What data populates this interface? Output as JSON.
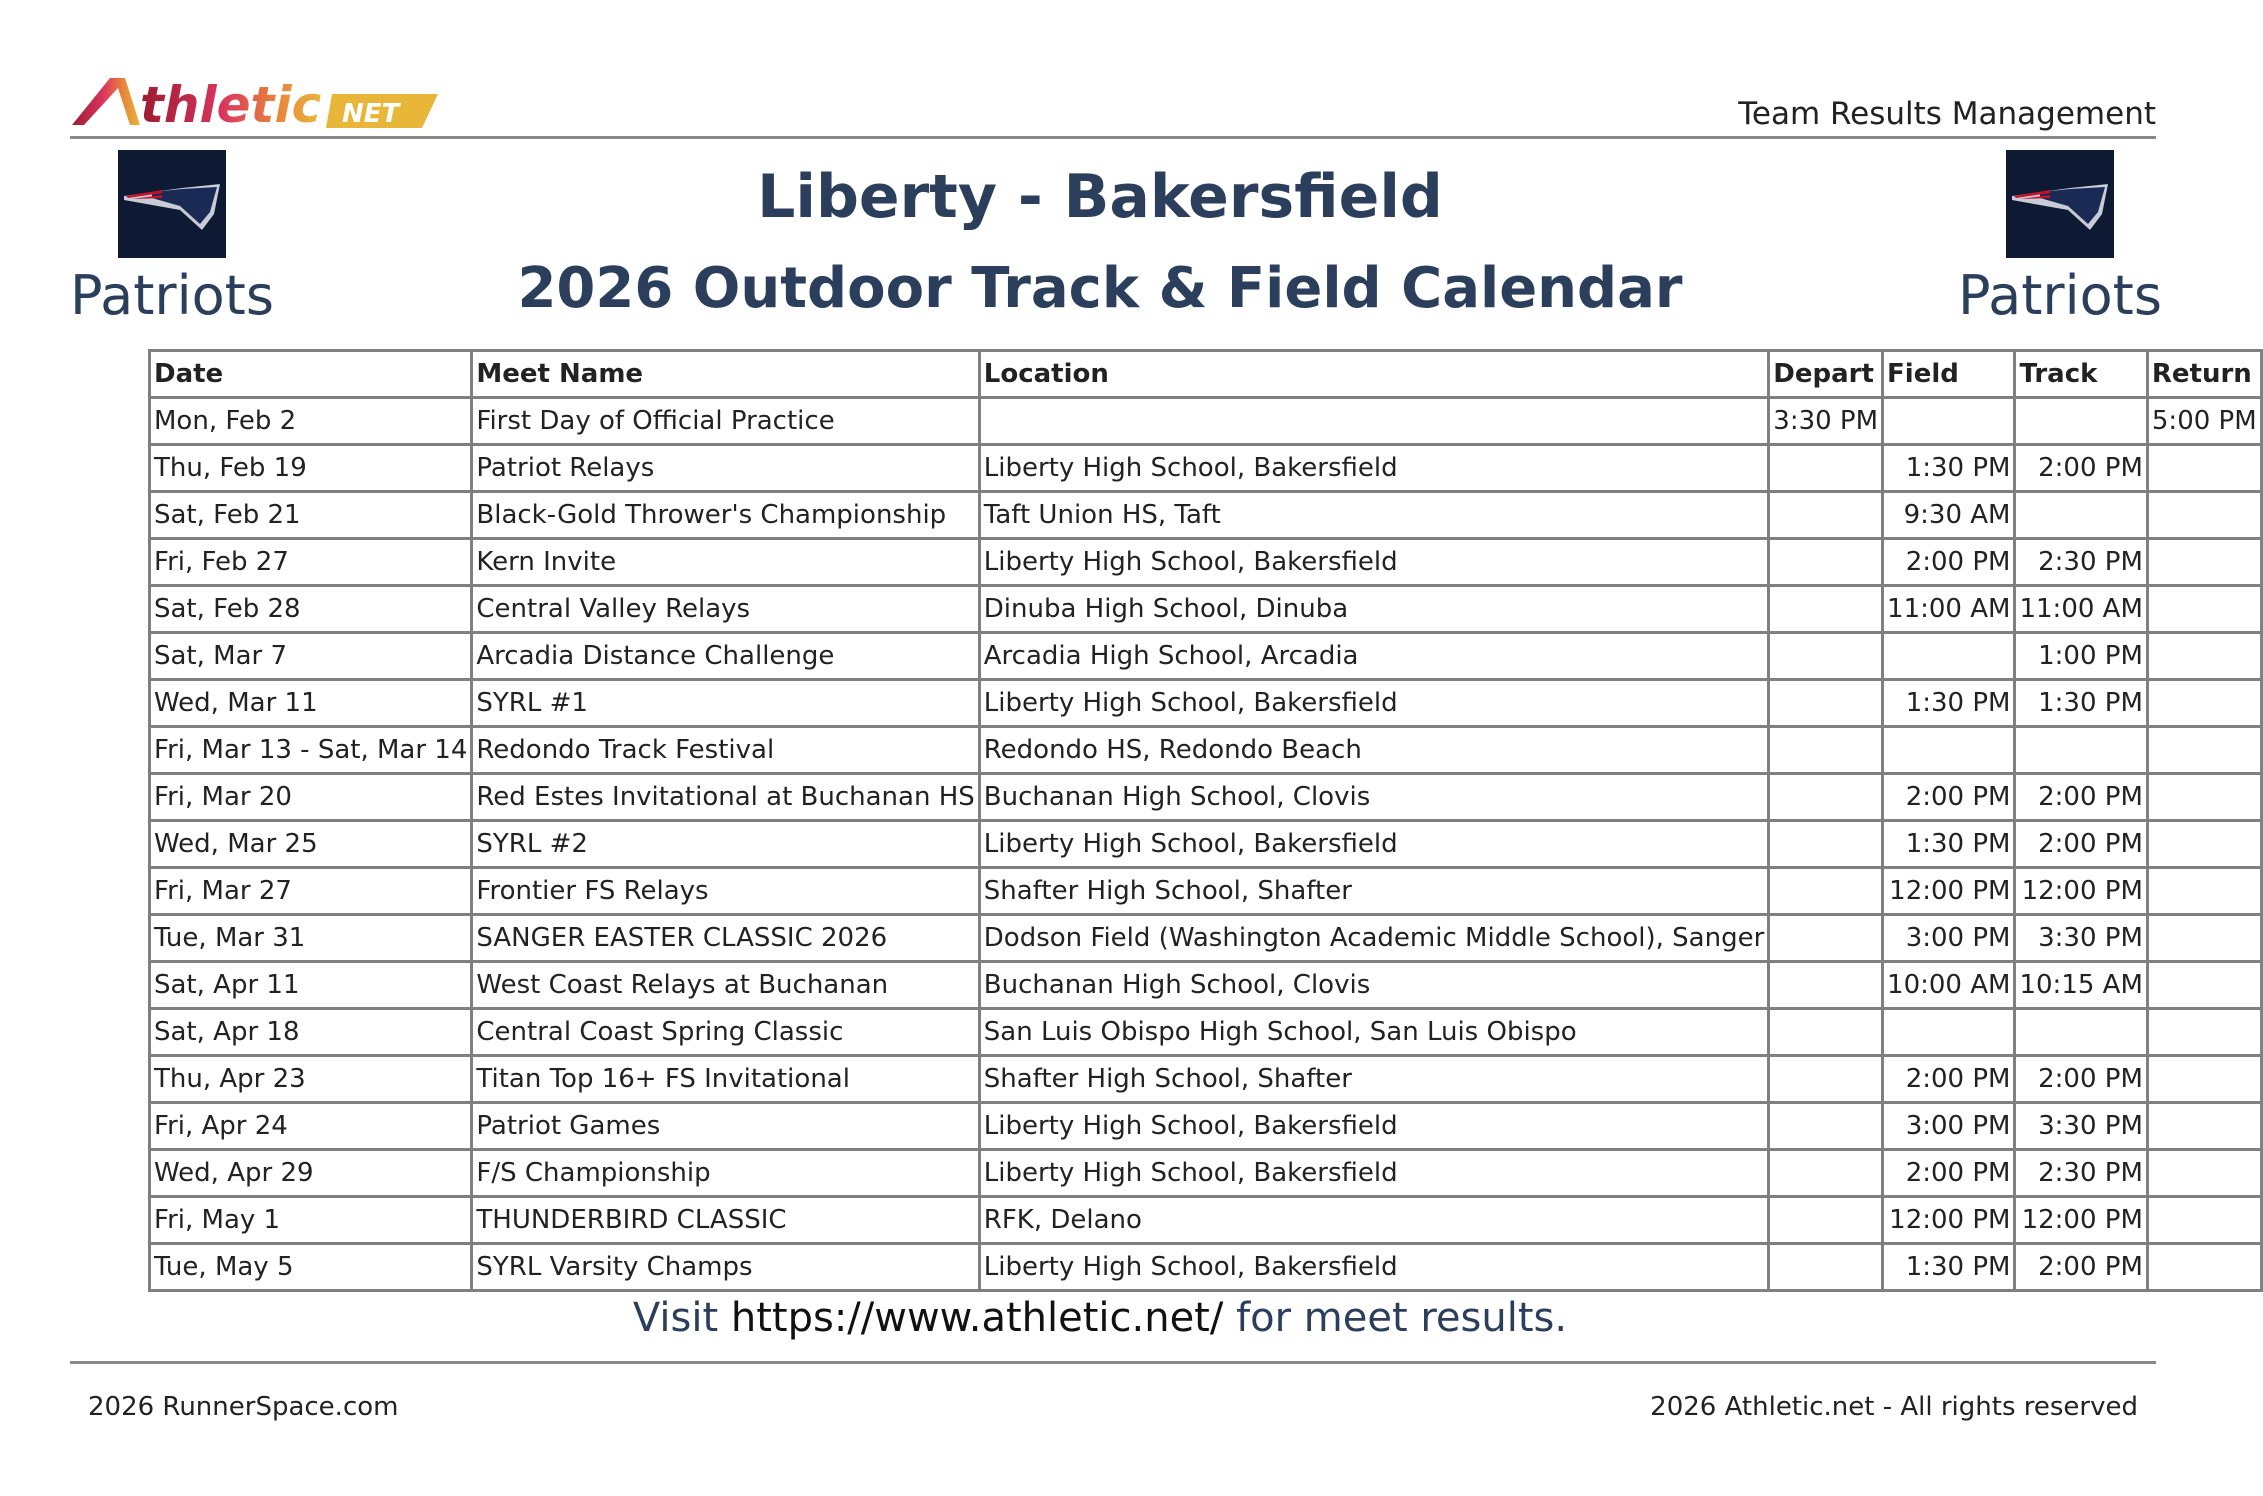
{
  "brand": {
    "logo_text": "Athletic",
    "logo_suffix": "NET",
    "tagline": "Team Results Management"
  },
  "team": {
    "name_left": "Patriots",
    "name_right": "Patriots"
  },
  "header": {
    "title": "Liberty - Bakersfield",
    "subtitle": "2026 Outdoor Track & Field Calendar"
  },
  "table": {
    "columns": [
      "Date",
      "Meet Name",
      "Location",
      "Depart",
      "Field",
      "Track",
      "Return"
    ],
    "rows": [
      [
        "Mon, Feb 2",
        "First Day of Official Practice",
        "",
        "3:30 PM",
        "",
        "",
        "5:00 PM"
      ],
      [
        "Thu, Feb 19",
        "Patriot Relays",
        "Liberty High School, Bakersfield",
        "",
        "1:30 PM",
        "2:00 PM",
        ""
      ],
      [
        "Sat, Feb 21",
        "Black-Gold Thrower's Championship",
        "Taft Union HS, Taft",
        "",
        "9:30 AM",
        "",
        ""
      ],
      [
        "Fri, Feb 27",
        "Kern Invite",
        "Liberty High School, Bakersfield",
        "",
        "2:00 PM",
        "2:30 PM",
        ""
      ],
      [
        "Sat, Feb 28",
        "Central Valley Relays",
        "Dinuba High School, Dinuba",
        "",
        "11:00 AM",
        "11:00 AM",
        ""
      ],
      [
        "Sat, Mar 7",
        "Arcadia Distance Challenge",
        "Arcadia High School, Arcadia",
        "",
        "",
        "1:00 PM",
        ""
      ],
      [
        "Wed, Mar 11",
        "SYRL #1",
        "Liberty High School, Bakersfield",
        "",
        "1:30 PM",
        "1:30 PM",
        ""
      ],
      [
        "Fri, Mar 13 - Sat, Mar 14",
        "Redondo Track Festival",
        "Redondo HS, Redondo Beach",
        "",
        "",
        "",
        ""
      ],
      [
        "Fri, Mar 20",
        "Red Estes Invitational at Buchanan HS",
        "Buchanan High School, Clovis",
        "",
        "2:00 PM",
        "2:00 PM",
        ""
      ],
      [
        "Wed, Mar 25",
        "SYRL #2",
        "Liberty High School, Bakersfield",
        "",
        "1:30 PM",
        "2:00 PM",
        ""
      ],
      [
        "Fri, Mar 27",
        "Frontier FS Relays",
        "Shafter High School, Shafter",
        "",
        "12:00 PM",
        "12:00 PM",
        ""
      ],
      [
        "Tue, Mar 31",
        "SANGER EASTER CLASSIC 2026",
        "Dodson Field (Washington Academic Middle School), Sanger",
        "",
        "3:00 PM",
        "3:30 PM",
        ""
      ],
      [
        "Sat, Apr 11",
        "West Coast Relays at Buchanan",
        "Buchanan High School, Clovis",
        "",
        "10:00 AM",
        "10:15 AM",
        ""
      ],
      [
        "Sat, Apr 18",
        "Central Coast Spring Classic",
        "San Luis Obispo High School, San Luis Obispo",
        "",
        "",
        "",
        ""
      ],
      [
        "Thu, Apr 23",
        "Titan Top 16+ FS Invitational",
        "Shafter High School, Shafter",
        "",
        "2:00 PM",
        "2:00 PM",
        ""
      ],
      [
        "Fri, Apr 24",
        "Patriot Games",
        "Liberty High School, Bakersfield",
        "",
        "3:00 PM",
        "3:30 PM",
        ""
      ],
      [
        "Wed, Apr 29",
        "F/S Championship",
        "Liberty High School, Bakersfield",
        "",
        "2:00 PM",
        "2:30 PM",
        ""
      ],
      [
        "Fri, May 1",
        "THUNDERBIRD CLASSIC",
        "RFK, Delano",
        "",
        "12:00 PM",
        "12:00 PM",
        ""
      ],
      [
        "Tue, May 5",
        "SYRL Varsity Champs",
        "Liberty High School, Bakersfield",
        "",
        "1:30 PM",
        "2:00 PM",
        ""
      ]
    ]
  },
  "visit": {
    "prefix": "Visit",
    "url": "https://www.athletic.net/",
    "suffix": "for meet results."
  },
  "footer": {
    "left": "2026 RunnerSpace.com",
    "right": "2026 Athletic.net - All rights reserved"
  }
}
